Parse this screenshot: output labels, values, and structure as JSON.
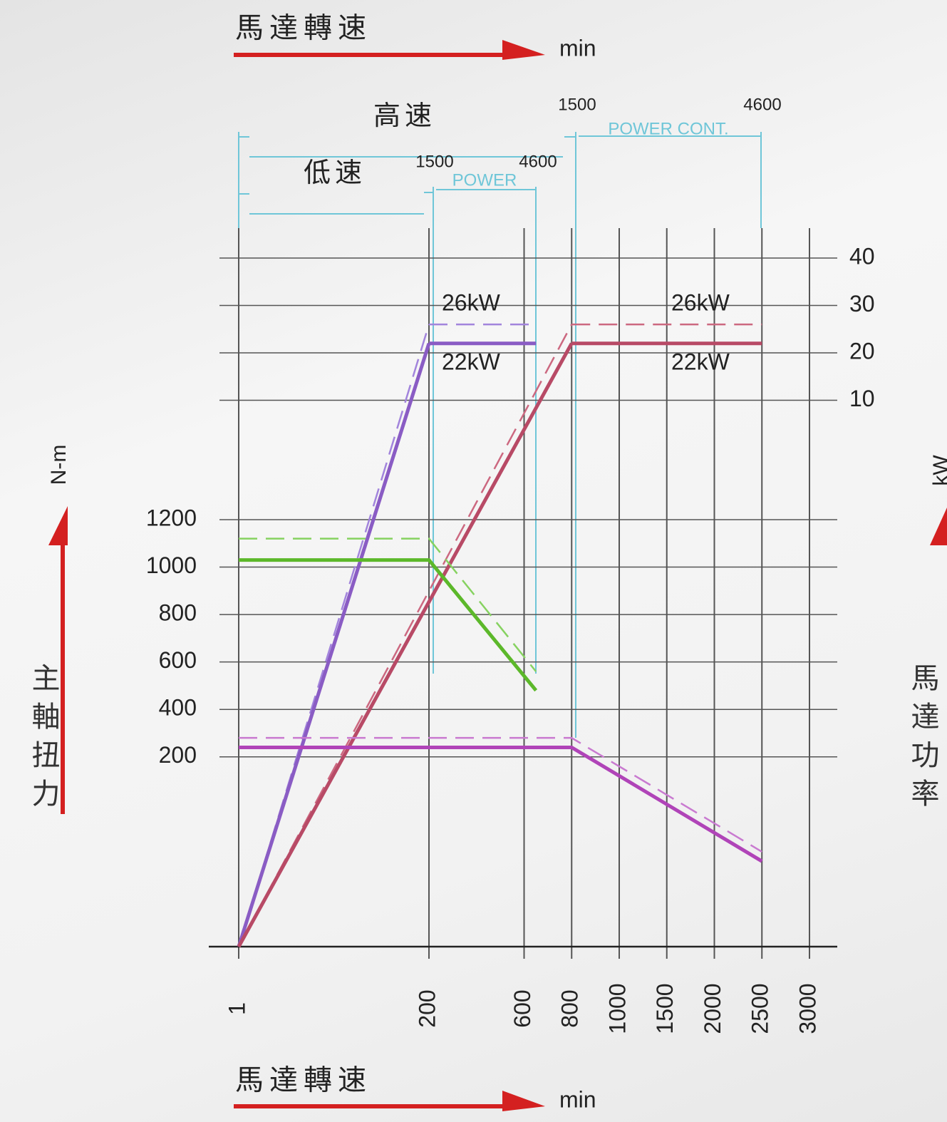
{
  "chart_data": {
    "type": "line",
    "x_label": "馬達轉速",
    "x_unit": "min",
    "y_label": "主軸扭力",
    "y_unit": "N-m",
    "y2_label": "馬達功率",
    "y2_unit": "kW",
    "xlim": [
      1,
      3000
    ],
    "xticks": [
      1,
      200,
      600,
      800,
      1000,
      1500,
      2000,
      2500,
      3000
    ],
    "ylim": [
      -600,
      1200
    ],
    "yticks": [
      200,
      400,
      600,
      800,
      1000,
      1200
    ],
    "y2lim": [
      0,
      40
    ],
    "y2ticks": [
      10,
      20,
      30,
      40
    ],
    "grid": true,
    "series": [
      {
        "color": "#a284dc",
        "dashed": true,
        "from_origin": true,
        "axis": "y2",
        "x": [
          200,
          650
        ],
        "values": [
          26,
          26
        ]
      },
      {
        "color": "#8a5cc4",
        "dashed": false,
        "from_origin": true,
        "axis": "y2",
        "x": [
          200,
          650
        ],
        "values": [
          22,
          22
        ]
      },
      {
        "color": "#cc6880",
        "dashed": true,
        "from_origin": true,
        "axis": "y2",
        "x": [
          800,
          2500
        ],
        "values": [
          26,
          26
        ]
      },
      {
        "color": "#b84a66",
        "dashed": false,
        "from_origin": true,
        "axis": "y2",
        "x": [
          800,
          2500
        ],
        "values": [
          22,
          22
        ]
      },
      {
        "color": "#86d260",
        "dashed": true,
        "from_origin": false,
        "x": [
          1,
          200,
          650
        ],
        "values": [
          1120,
          1120,
          560
        ]
      },
      {
        "color": "#5cb82a",
        "dashed": false,
        "from_origin": false,
        "x": [
          1,
          200,
          650
        ],
        "values": [
          1030,
          1030,
          480
        ]
      },
      {
        "color": "#c97ad0",
        "dashed": true,
        "from_origin": false,
        "x": [
          1,
          800,
          2500
        ],
        "values": [
          280,
          280,
          -200
        ]
      },
      {
        "color": "#b044b8",
        "dashed": false,
        "from_origin": false,
        "x": [
          1,
          800,
          2500
        ],
        "values": [
          240,
          240,
          -240
        ]
      }
    ],
    "annotations": [
      "26kW",
      "22kW",
      "26kW",
      "22kW"
    ],
    "speed_ranges": [
      {
        "label": "低速",
        "start": 1500,
        "end": 4600,
        "band": "POWER"
      },
      {
        "label": "高速",
        "start": 1500,
        "end": 4600,
        "band": "POWER CONT."
      }
    ]
  }
}
